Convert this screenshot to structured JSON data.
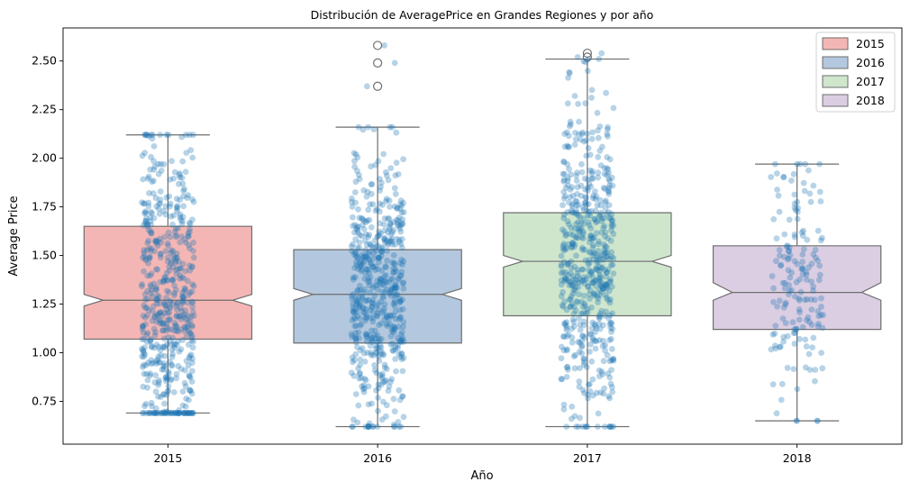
{
  "chart_data": {
    "type": "box",
    "title": "Distribución de AveragePrice en Grandes Regiones y por año",
    "xlabel": "Año",
    "ylabel": "Average Price",
    "ylim": [
      0.53,
      2.67
    ],
    "yticks": [
      "0.75",
      "1.00",
      "1.25",
      "1.50",
      "1.75",
      "2.00",
      "2.25",
      "2.50"
    ],
    "categories": [
      "2015",
      "2016",
      "2017",
      "2018"
    ],
    "notched": true,
    "legend_position": "top-right",
    "series": [
      {
        "name": "2015",
        "color": "#f4b6b4",
        "whisker_low": 0.69,
        "q1": 1.07,
        "median": 1.27,
        "q3": 1.65,
        "whisker_high": 2.12,
        "notch_low": 1.24,
        "notch_high": 1.3,
        "outliers": [],
        "strip_count": 560
      },
      {
        "name": "2016",
        "color": "#b3c8de",
        "whisker_low": 0.62,
        "q1": 1.05,
        "median": 1.3,
        "q3": 1.53,
        "whisker_high": 2.16,
        "notch_low": 1.27,
        "notch_high": 1.33,
        "outliers": [
          2.37,
          2.49,
          2.58
        ],
        "strip_count": 560
      },
      {
        "name": "2017",
        "color": "#cfe6cd",
        "whisker_low": 0.62,
        "q1": 1.19,
        "median": 1.47,
        "q3": 1.72,
        "whisker_high": 2.51,
        "notch_low": 1.44,
        "notch_high": 1.5,
        "outliers": [
          2.52,
          2.54
        ],
        "strip_count": 580
      },
      {
        "name": "2018",
        "color": "#dbcde2",
        "whisker_low": 0.65,
        "q1": 1.12,
        "median": 1.31,
        "q3": 1.55,
        "whisker_high": 1.97,
        "notch_low": 1.27,
        "notch_high": 1.36,
        "outliers": [],
        "strip_count": 170
      }
    ],
    "strip_color": "#1f77b4",
    "legend": [
      "2015",
      "2016",
      "2017",
      "2018"
    ]
  }
}
